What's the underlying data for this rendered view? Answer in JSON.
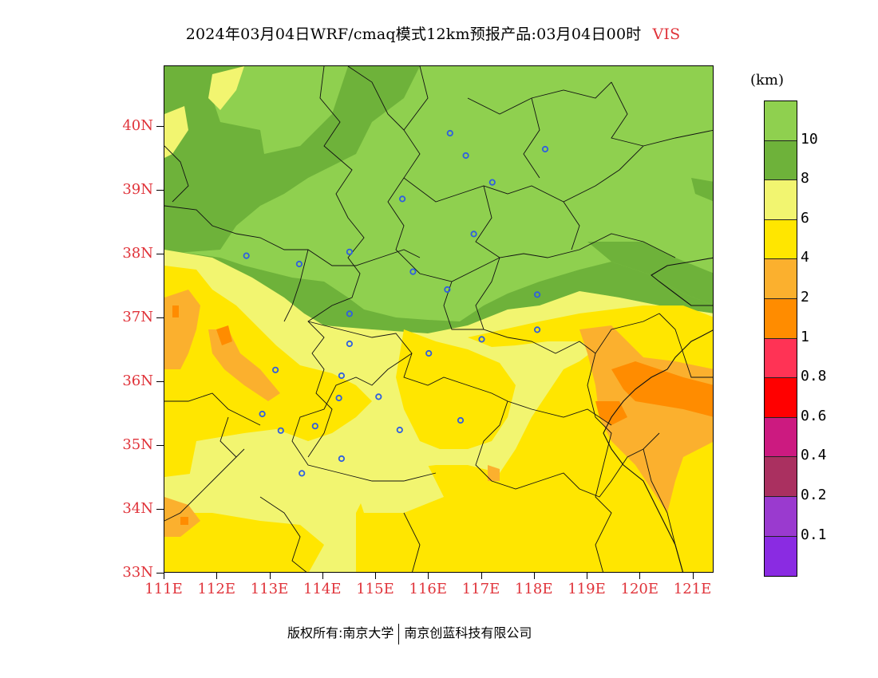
{
  "title": {
    "main": "2024年03月04日WRF/cmaq模式12km预报产品:03月04日00时",
    "variable": "VIS"
  },
  "map": {
    "lat_labels": [
      "40N",
      "39N",
      "38N",
      "37N",
      "36N",
      "35N",
      "34N",
      "33N"
    ],
    "lon_labels": [
      "111E",
      "112E",
      "113E",
      "114E",
      "115E",
      "116E",
      "117E",
      "118E",
      "119E",
      "120E",
      "121E"
    ],
    "colors": {
      "gt10": "#8fd04f",
      "8to10": "#6eb23a",
      "6to8": "#f2f570",
      "4to6": "#ffe600",
      "2to4": "#fbb02e",
      "1to2": "#ff8c00",
      "city_marker": "#2f5fe0"
    },
    "city_markers": [
      {
        "lon": 116.4,
        "lat": 39.9
      },
      {
        "lon": 116.7,
        "lat": 39.55
      },
      {
        "lon": 117.2,
        "lat": 39.13
      },
      {
        "lon": 118.2,
        "lat": 39.65
      },
      {
        "lon": 115.5,
        "lat": 38.87
      },
      {
        "lon": 116.85,
        "lat": 38.32
      },
      {
        "lon": 112.55,
        "lat": 37.98
      },
      {
        "lon": 113.55,
        "lat": 37.85
      },
      {
        "lon": 114.5,
        "lat": 38.04
      },
      {
        "lon": 115.7,
        "lat": 37.73
      },
      {
        "lon": 116.35,
        "lat": 37.45
      },
      {
        "lon": 114.5,
        "lat": 37.07
      },
      {
        "lon": 117.0,
        "lat": 36.67
      },
      {
        "lon": 118.05,
        "lat": 37.37
      },
      {
        "lon": 118.05,
        "lat": 36.82
      },
      {
        "lon": 114.5,
        "lat": 36.6
      },
      {
        "lon": 116.0,
        "lat": 36.45
      },
      {
        "lon": 113.1,
        "lat": 36.19
      },
      {
        "lon": 114.35,
        "lat": 36.1
      },
      {
        "lon": 114.3,
        "lat": 35.75
      },
      {
        "lon": 115.05,
        "lat": 35.77
      },
      {
        "lon": 112.85,
        "lat": 35.5
      },
      {
        "lon": 113.2,
        "lat": 35.24
      },
      {
        "lon": 113.85,
        "lat": 35.31
      },
      {
        "lon": 115.45,
        "lat": 35.25
      },
      {
        "lon": 116.6,
        "lat": 35.4
      },
      {
        "lon": 114.35,
        "lat": 34.8
      },
      {
        "lon": 113.6,
        "lat": 34.57
      }
    ]
  },
  "colorbar": {
    "unit": "(km)",
    "labels": [
      "10",
      "8",
      "6",
      "4",
      "2",
      "1",
      "0.8",
      "0.6",
      "0.4",
      "0.2",
      "0.1"
    ],
    "colors": [
      "#8fd04f",
      "#6eb23a",
      "#f2f570",
      "#ffe600",
      "#fbb02e",
      "#ff8c00",
      "#ff3355",
      "#ff0000",
      "#cc1a80",
      "#aa3060",
      "#9a3acf",
      "#8a2be2"
    ]
  },
  "footer": {
    "left": "版权所有:南京大学",
    "right": "南京创蓝科技有限公司"
  }
}
